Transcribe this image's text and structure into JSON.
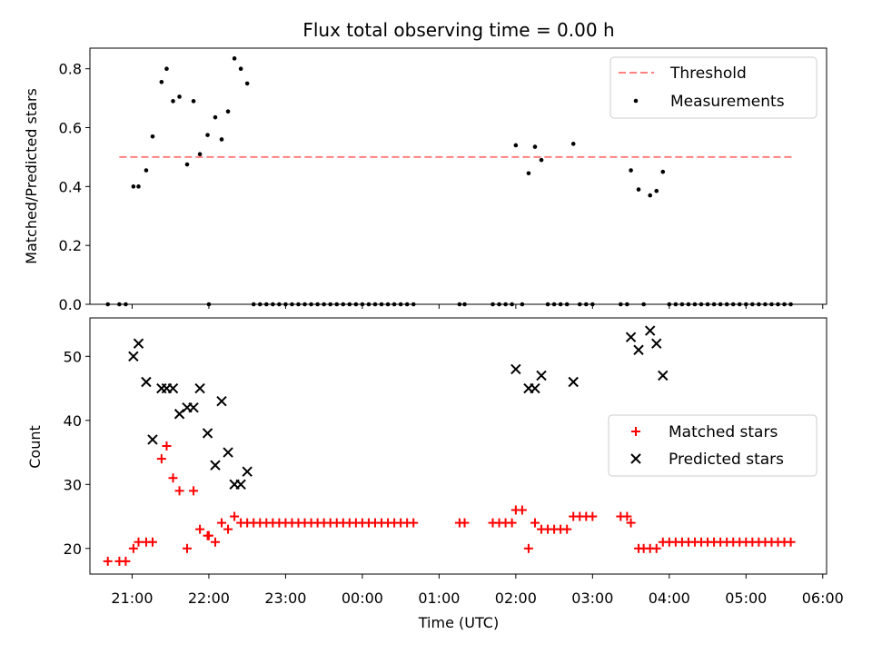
{
  "chart_data": [
    {
      "type": "scatter",
      "title": "Flux total observing time = 0.00 h",
      "xlabel": "",
      "ylabel": "Matched/Predicted stars",
      "ylim": [
        0.0,
        0.87
      ],
      "yticks": [
        "0.0",
        "0.2",
        "0.4",
        "0.6",
        "0.8"
      ],
      "grid": false,
      "legend": "top-right",
      "threshold": {
        "name": "Threshold",
        "value": 0.5,
        "x_start": "20:50",
        "x_end": "05:37",
        "color": "#ff8080"
      },
      "series": [
        {
          "name": "Measurements",
          "color": "#000000",
          "points": [
            [
              "20:41",
              0.0
            ],
            [
              "20:50",
              0.0
            ],
            [
              "20:55",
              0.0
            ],
            [
              "21:01",
              0.4
            ],
            [
              "21:05",
              0.4
            ],
            [
              "21:11",
              0.455
            ],
            [
              "21:16",
              0.57
            ],
            [
              "21:23",
              0.755
            ],
            [
              "21:27",
              0.8
            ],
            [
              "21:32",
              0.69
            ],
            [
              "21:37",
              0.705
            ],
            [
              "21:43",
              0.475
            ],
            [
              "21:48",
              0.69
            ],
            [
              "21:53",
              0.51
            ],
            [
              "21:59",
              0.575
            ],
            [
              "22:00",
              0.0
            ],
            [
              "22:05",
              0.635
            ],
            [
              "22:10",
              0.56
            ],
            [
              "22:15",
              0.655
            ],
            [
              "22:20",
              0.835
            ],
            [
              "22:25",
              0.8
            ],
            [
              "22:30",
              0.75
            ],
            [
              "22:35",
              0.0
            ],
            [
              "22:40",
              0.0
            ],
            [
              "22:45",
              0.0
            ],
            [
              "22:50",
              0.0
            ],
            [
              "22:55",
              0.0
            ],
            [
              "23:00",
              0.0
            ],
            [
              "23:05",
              0.0
            ],
            [
              "23:10",
              0.0
            ],
            [
              "23:15",
              0.0
            ],
            [
              "23:20",
              0.0
            ],
            [
              "23:25",
              0.0
            ],
            [
              "23:30",
              0.0
            ],
            [
              "23:35",
              0.0
            ],
            [
              "23:40",
              0.0
            ],
            [
              "23:45",
              0.0
            ],
            [
              "23:50",
              0.0
            ],
            [
              "23:55",
              0.0
            ],
            [
              "00:00",
              0.0
            ],
            [
              "00:05",
              0.0
            ],
            [
              "00:10",
              0.0
            ],
            [
              "00:15",
              0.0
            ],
            [
              "00:20",
              0.0
            ],
            [
              "00:25",
              0.0
            ],
            [
              "00:30",
              0.0
            ],
            [
              "00:35",
              0.0
            ],
            [
              "00:40",
              0.0
            ],
            [
              "01:16",
              0.0
            ],
            [
              "01:20",
              0.0
            ],
            [
              "01:42",
              0.0
            ],
            [
              "01:47",
              0.0
            ],
            [
              "01:52",
              0.0
            ],
            [
              "01:57",
              0.0
            ],
            [
              "02:00",
              0.54
            ],
            [
              "02:05",
              0.0
            ],
            [
              "02:10",
              0.445
            ],
            [
              "02:15",
              0.535
            ],
            [
              "02:20",
              0.49
            ],
            [
              "02:25",
              0.0
            ],
            [
              "02:30",
              0.0
            ],
            [
              "02:35",
              0.0
            ],
            [
              "02:40",
              0.0
            ],
            [
              "02:45",
              0.545
            ],
            [
              "02:50",
              0.0
            ],
            [
              "02:55",
              0.0
            ],
            [
              "03:00",
              0.0
            ],
            [
              "03:22",
              0.0
            ],
            [
              "03:27",
              0.0
            ],
            [
              "03:30",
              0.455
            ],
            [
              "03:36",
              0.39
            ],
            [
              "03:40",
              0.0
            ],
            [
              "03:45",
              0.37
            ],
            [
              "03:50",
              0.385
            ],
            [
              "03:55",
              0.45
            ],
            [
              "04:00",
              0.0
            ],
            [
              "04:05",
              0.0
            ],
            [
              "04:10",
              0.0
            ],
            [
              "04:15",
              0.0
            ],
            [
              "04:20",
              0.0
            ],
            [
              "04:25",
              0.0
            ],
            [
              "04:30",
              0.0
            ],
            [
              "04:35",
              0.0
            ],
            [
              "04:40",
              0.0
            ],
            [
              "04:45",
              0.0
            ],
            [
              "04:50",
              0.0
            ],
            [
              "04:55",
              0.0
            ],
            [
              "05:00",
              0.0
            ],
            [
              "05:05",
              0.0
            ],
            [
              "05:10",
              0.0
            ],
            [
              "05:15",
              0.0
            ],
            [
              "05:20",
              0.0
            ],
            [
              "05:25",
              0.0
            ],
            [
              "05:30",
              0.0
            ],
            [
              "05:35",
              0.0
            ]
          ]
        }
      ]
    },
    {
      "type": "scatter",
      "title": "",
      "xlabel": "Time (UTC)",
      "ylabel": "Count",
      "ylim": [
        16,
        56
      ],
      "yticks": [
        "20",
        "30",
        "40",
        "50"
      ],
      "xticks": [
        "21:00",
        "22:00",
        "23:00",
        "00:00",
        "01:00",
        "02:00",
        "03:00",
        "04:00",
        "05:00",
        "06:00"
      ],
      "xlim": [
        "20:27",
        "06:03"
      ],
      "grid": false,
      "legend": "center-right",
      "series": [
        {
          "name": "Matched stars",
          "color": "#ff0000",
          "marker": "+",
          "points": [
            [
              "20:41",
              18
            ],
            [
              "20:50",
              18
            ],
            [
              "20:55",
              18
            ],
            [
              "21:01",
              20
            ],
            [
              "21:05",
              21
            ],
            [
              "21:11",
              21
            ],
            [
              "21:16",
              21
            ],
            [
              "21:23",
              34
            ],
            [
              "21:27",
              36
            ],
            [
              "21:32",
              31
            ],
            [
              "21:37",
              29
            ],
            [
              "21:43",
              20
            ],
            [
              "21:48",
              29
            ],
            [
              "21:53",
              23
            ],
            [
              "21:59",
              22
            ],
            [
              "22:00",
              22
            ],
            [
              "22:05",
              21
            ],
            [
              "22:10",
              24
            ],
            [
              "22:15",
              23
            ],
            [
              "22:20",
              25
            ],
            [
              "22:25",
              24
            ],
            [
              "22:30",
              24
            ],
            [
              "22:35",
              24
            ],
            [
              "22:40",
              24
            ],
            [
              "22:45",
              24
            ],
            [
              "22:50",
              24
            ],
            [
              "22:55",
              24
            ],
            [
              "23:00",
              24
            ],
            [
              "23:05",
              24
            ],
            [
              "23:10",
              24
            ],
            [
              "23:15",
              24
            ],
            [
              "23:20",
              24
            ],
            [
              "23:25",
              24
            ],
            [
              "23:30",
              24
            ],
            [
              "23:35",
              24
            ],
            [
              "23:40",
              24
            ],
            [
              "23:45",
              24
            ],
            [
              "23:50",
              24
            ],
            [
              "23:55",
              24
            ],
            [
              "00:00",
              24
            ],
            [
              "00:05",
              24
            ],
            [
              "00:10",
              24
            ],
            [
              "00:15",
              24
            ],
            [
              "00:20",
              24
            ],
            [
              "00:25",
              24
            ],
            [
              "00:30",
              24
            ],
            [
              "00:35",
              24
            ],
            [
              "00:40",
              24
            ],
            [
              "01:16",
              24
            ],
            [
              "01:20",
              24
            ],
            [
              "01:42",
              24
            ],
            [
              "01:47",
              24
            ],
            [
              "01:52",
              24
            ],
            [
              "01:57",
              24
            ],
            [
              "02:00",
              26
            ],
            [
              "02:05",
              26
            ],
            [
              "02:10",
              20
            ],
            [
              "02:15",
              24
            ],
            [
              "02:20",
              23
            ],
            [
              "02:25",
              23
            ],
            [
              "02:30",
              23
            ],
            [
              "02:35",
              23
            ],
            [
              "02:40",
              23
            ],
            [
              "02:45",
              25
            ],
            [
              "02:50",
              25
            ],
            [
              "02:55",
              25
            ],
            [
              "03:00",
              25
            ],
            [
              "03:22",
              25
            ],
            [
              "03:27",
              25
            ],
            [
              "03:30",
              24
            ],
            [
              "03:36",
              20
            ],
            [
              "03:40",
              20
            ],
            [
              "03:45",
              20
            ],
            [
              "03:50",
              20
            ],
            [
              "03:55",
              21
            ],
            [
              "04:00",
              21
            ],
            [
              "04:05",
              21
            ],
            [
              "04:10",
              21
            ],
            [
              "04:15",
              21
            ],
            [
              "04:20",
              21
            ],
            [
              "04:25",
              21
            ],
            [
              "04:30",
              21
            ],
            [
              "04:35",
              21
            ],
            [
              "04:40",
              21
            ],
            [
              "04:45",
              21
            ],
            [
              "04:50",
              21
            ],
            [
              "04:55",
              21
            ],
            [
              "05:00",
              21
            ],
            [
              "05:05",
              21
            ],
            [
              "05:10",
              21
            ],
            [
              "05:15",
              21
            ],
            [
              "05:20",
              21
            ],
            [
              "05:25",
              21
            ],
            [
              "05:30",
              21
            ],
            [
              "05:35",
              21
            ]
          ]
        },
        {
          "name": "Predicted stars",
          "color": "#000000",
          "marker": "x",
          "points": [
            [
              "21:01",
              50
            ],
            [
              "21:05",
              52
            ],
            [
              "21:11",
              46
            ],
            [
              "21:16",
              37
            ],
            [
              "21:23",
              45
            ],
            [
              "21:27",
              45
            ],
            [
              "21:32",
              45
            ],
            [
              "21:37",
              41
            ],
            [
              "21:43",
              42
            ],
            [
              "21:48",
              42
            ],
            [
              "21:53",
              45
            ],
            [
              "21:59",
              38
            ],
            [
              "22:05",
              33
            ],
            [
              "22:10",
              43
            ],
            [
              "22:15",
              35
            ],
            [
              "22:20",
              30
            ],
            [
              "22:25",
              30
            ],
            [
              "22:30",
              32
            ],
            [
              "02:00",
              48
            ],
            [
              "02:10",
              45
            ],
            [
              "02:15",
              45
            ],
            [
              "02:20",
              47
            ],
            [
              "02:45",
              46
            ],
            [
              "03:30",
              53
            ],
            [
              "03:36",
              51
            ],
            [
              "03:45",
              54
            ],
            [
              "03:50",
              52
            ],
            [
              "03:55",
              47
            ]
          ]
        }
      ]
    }
  ]
}
